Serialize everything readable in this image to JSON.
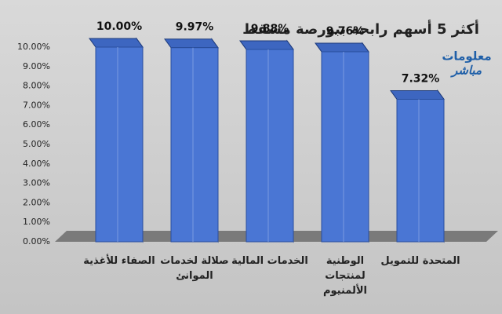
{
  "chart_data": {
    "type": "bar3d",
    "title": "أكثر 5 أسهم رابحة ببورصة مسقط",
    "watermark": [
      "معلومات",
      "مباشر"
    ],
    "categories": [
      "الصفاء للأغذية",
      "صلالة لخدمات\nالموانئ",
      "الخدمات المالية",
      "الوطنية\nلمنتجات\nالألمنيوم",
      "المتحدة للتمويل"
    ],
    "values": [
      10.0,
      9.97,
      9.88,
      9.76,
      7.32
    ],
    "value_labels": [
      "10.00%",
      "9.97%",
      "9.88%",
      "9.76%",
      "7.32%"
    ],
    "color": "#4a76d4",
    "ylim": [
      0,
      10
    ],
    "yticks": [
      {
        "value": 0,
        "label": "0.00%"
      },
      {
        "value": 1,
        "label": "1.00%"
      },
      {
        "value": 2,
        "label": "2.00%"
      },
      {
        "value": 3,
        "label": "3.00%"
      },
      {
        "value": 4,
        "label": "4.00%"
      },
      {
        "value": 5,
        "label": "5.00%"
      },
      {
        "value": 6,
        "label": "6.00%"
      },
      {
        "value": 7,
        "label": "7.00%"
      },
      {
        "value": 8,
        "label": "8.00%"
      },
      {
        "value": 9,
        "label": "9.00%"
      },
      {
        "value": 10,
        "label": "10.00%"
      }
    ]
  }
}
